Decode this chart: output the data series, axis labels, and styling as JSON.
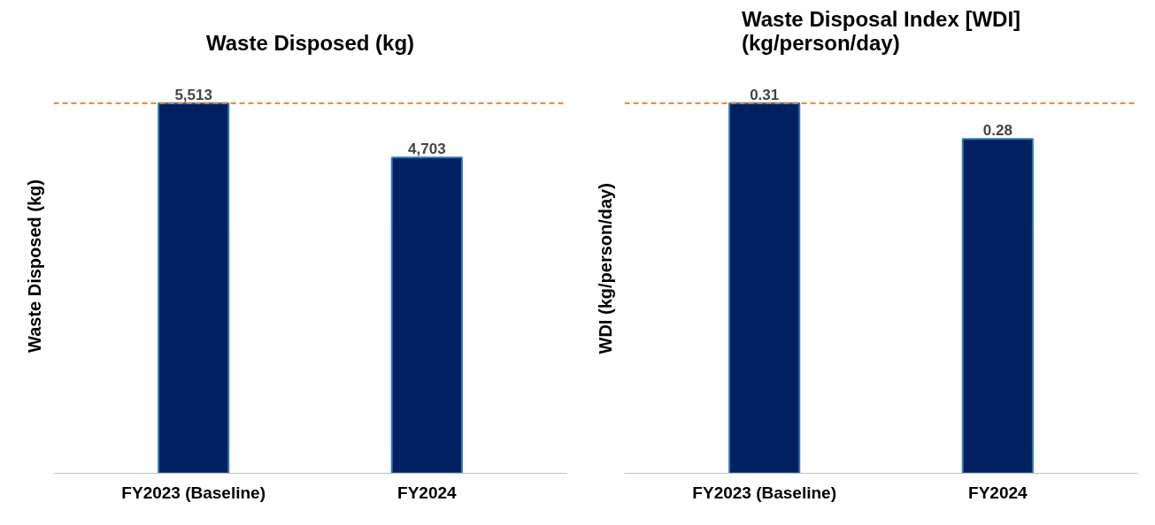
{
  "chart_data": [
    {
      "type": "bar",
      "title": "Waste Disposed (kg)",
      "ylabel": "Waste Disposed (kg)",
      "categories": [
        "FY2023 (Baseline)",
        "FY2024"
      ],
      "values": [
        5513,
        4703
      ],
      "value_labels": [
        "5,513",
        "4,703"
      ],
      "color": "#002060",
      "tick_labels": "x",
      "grid": false,
      "ref_lines": [
        {
          "axis": "y",
          "value": 5513,
          "color": "#ed7d31",
          "line_style": "dashed"
        }
      ]
    },
    {
      "type": "bar",
      "title": "Waste Disposal Index [WDI]\n(kg/person/day)",
      "ylabel": "WDI  (kg/person/day)",
      "categories": [
        "FY2023 (Baseline)",
        "FY2024"
      ],
      "values": [
        0.31,
        0.28
      ],
      "data_labels": true,
      "color": "#002060",
      "tick_labels": "x",
      "grid": false,
      "ref_lines": [
        {
          "axis": "y",
          "value": 0.31,
          "color": "#ed7d31",
          "line_style": "dashed"
        }
      ]
    }
  ]
}
